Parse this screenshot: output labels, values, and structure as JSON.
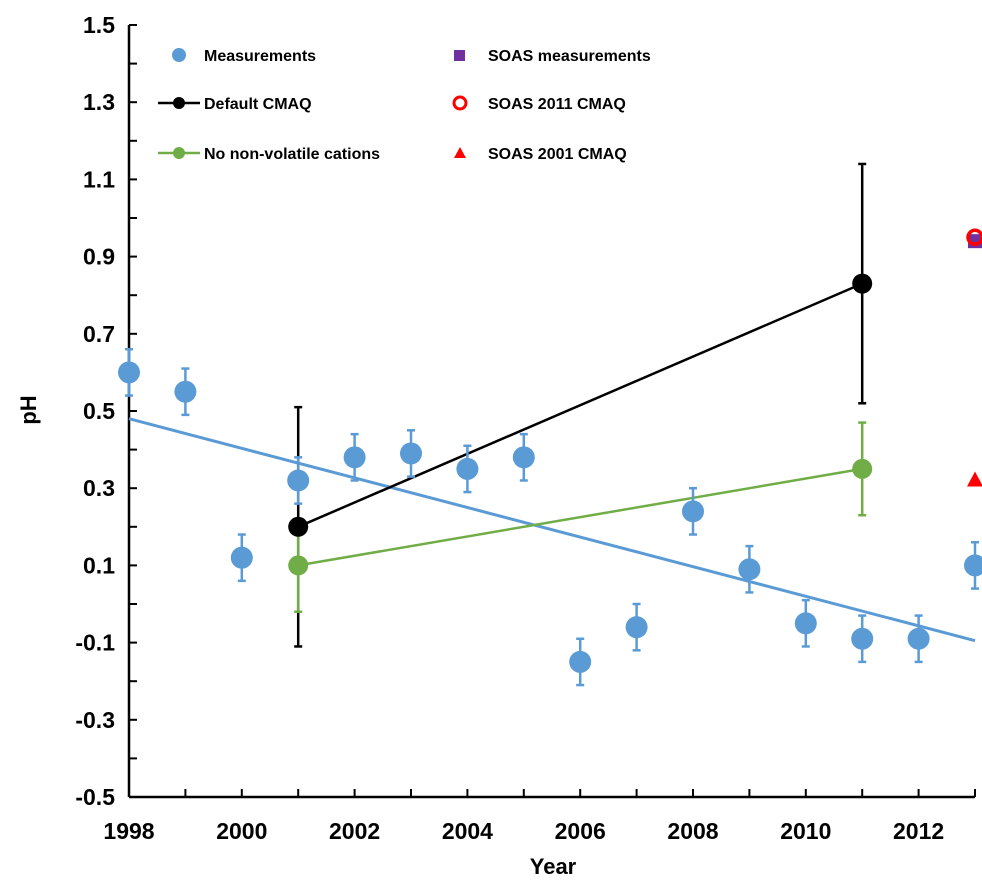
{
  "chart_data": {
    "type": "scatter",
    "xlabel": "Year",
    "ylabel": "pH",
    "xlim": [
      1998,
      2013
    ],
    "ylim": [
      -0.5,
      1.5
    ],
    "x_ticks": [
      "1998",
      "2000",
      "2002",
      "2004",
      "2006",
      "2008",
      "2010",
      "2012"
    ],
    "x_tick_values": [
      1998,
      2000,
      2002,
      2004,
      2006,
      2008,
      2010,
      2012
    ],
    "y_ticks": [
      "1.5",
      "1.3",
      "1.1",
      "0.9",
      "0.7",
      "0.5",
      "0.3",
      "0.1",
      "-0.1",
      "-0.3",
      "-0.5"
    ],
    "y_tick_values": [
      1.5,
      1.3,
      1.1,
      0.9,
      0.7,
      0.5,
      0.3,
      0.1,
      -0.1,
      -0.3,
      -0.5
    ],
    "legend_placement": "top",
    "grid": false,
    "colors": {
      "measurements": "#5b9bd5",
      "default_cmaq": "#000000",
      "no_nonvolatile": "#70ad47",
      "soas_measurements": "#7030a0",
      "soas_2011": "#ff0000",
      "soas_2001": "#ff0000"
    },
    "series": [
      {
        "name": "Measurements",
        "marker": "circle",
        "x": [
          1998,
          1999,
          2000,
          2001,
          2002,
          2003,
          2004,
          2005,
          2006,
          2007,
          2008,
          2009,
          2010,
          2011,
          2012,
          2013
        ],
        "y": [
          0.6,
          0.55,
          0.12,
          0.32,
          0.38,
          0.39,
          0.35,
          0.38,
          -0.15,
          -0.06,
          0.24,
          0.09,
          -0.05,
          -0.09,
          -0.09,
          0.1
        ],
        "error": [
          0.06,
          0.06,
          0.06,
          0.06,
          0.06,
          0.06,
          0.06,
          0.06,
          0.06,
          0.06,
          0.06,
          0.06,
          0.06,
          0.06,
          0.06,
          0.06
        ]
      },
      {
        "name": "Measurements trend",
        "type": "line",
        "x": [
          1998,
          2013
        ],
        "y": [
          0.48,
          -0.095
        ]
      },
      {
        "name": "Default CMAQ",
        "marker": "circle-line",
        "x": [
          2001,
          2011
        ],
        "y": [
          0.2,
          0.83
        ],
        "error": [
          0.31,
          0.31
        ]
      },
      {
        "name": "No non-volatile cations",
        "marker": "circle-line",
        "x": [
          2001,
          2011
        ],
        "y": [
          0.1,
          0.35
        ],
        "error": [
          0.12,
          0.12
        ]
      },
      {
        "name": "SOAS measurements",
        "marker": "square",
        "x": [
          2013
        ],
        "y": [
          0.94
        ]
      },
      {
        "name": "SOAS 2011 CMAQ",
        "marker": "open-circle",
        "x": [
          2013
        ],
        "y": [
          0.95
        ]
      },
      {
        "name": "SOAS 2001 CMAQ",
        "marker": "triangle",
        "x": [
          2013
        ],
        "y": [
          0.32
        ]
      }
    ]
  },
  "legend": {
    "measurements": "Measurements",
    "default_cmaq": "Default CMAQ",
    "no_nonvolatile": "No non-volatile cations",
    "soas_measurements": "SOAS measurements",
    "soas_2011": "SOAS 2011 CMAQ",
    "soas_2001": "SOAS 2001 CMAQ"
  }
}
